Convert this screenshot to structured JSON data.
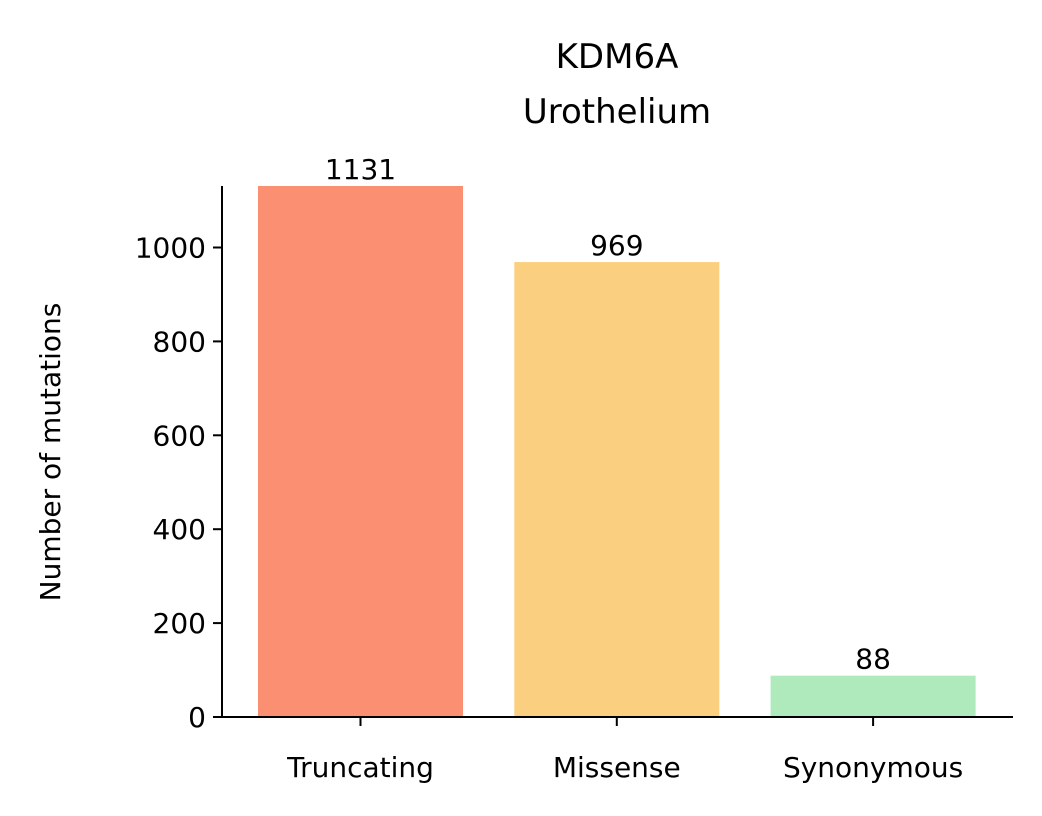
{
  "chart_data": {
    "type": "bar",
    "title": "KDM6A",
    "subtitle": "Urothelium",
    "xlabel": "",
    "ylabel": "Number of mutations",
    "categories": [
      "Truncating",
      "Missense",
      "Synonymous"
    ],
    "values": [
      1131,
      969,
      88
    ],
    "data_labels": [
      "1131",
      "969",
      "88"
    ],
    "colors": [
      "#fb8f71",
      "#fad080",
      "#aeeabc"
    ],
    "ylim": [
      0,
      1131
    ],
    "yticks": [
      0,
      200,
      400,
      600,
      800,
      1000
    ],
    "ytick_labels": [
      "0",
      "200",
      "400",
      "600",
      "800",
      "1000"
    ],
    "grid": false,
    "legend": "none"
  }
}
